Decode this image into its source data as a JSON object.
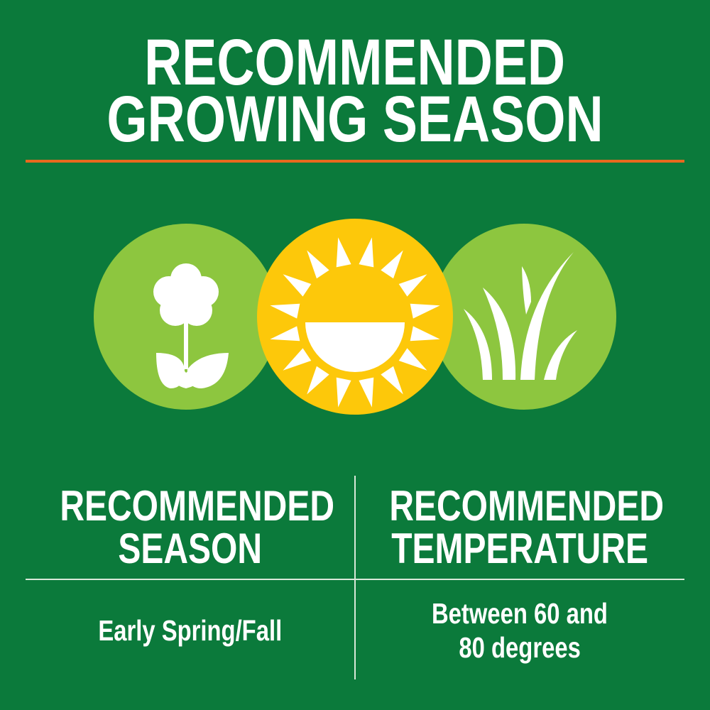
{
  "title": {
    "line1": "RECOMMENDED",
    "line2": "GROWING SEASON"
  },
  "colors": {
    "background": "#0b7a3b",
    "accent_rule": "#e8691e",
    "circle_light_green": "#8dc63f",
    "circle_yellow": "#fdc80a",
    "icon": "#ffffff"
  },
  "icons": [
    "flower-icon",
    "sun-icon",
    "grass-icon"
  ],
  "table": {
    "columns": [
      {
        "header_line1": "RECOMMENDED",
        "header_line2": "SEASON",
        "value_line1": "Early Spring/Fall"
      },
      {
        "header_line1": "RECOMMENDED",
        "header_line2": "TEMPERATURE",
        "value_line1": "Between 60 and",
        "value_line2": "80 degrees"
      }
    ]
  }
}
